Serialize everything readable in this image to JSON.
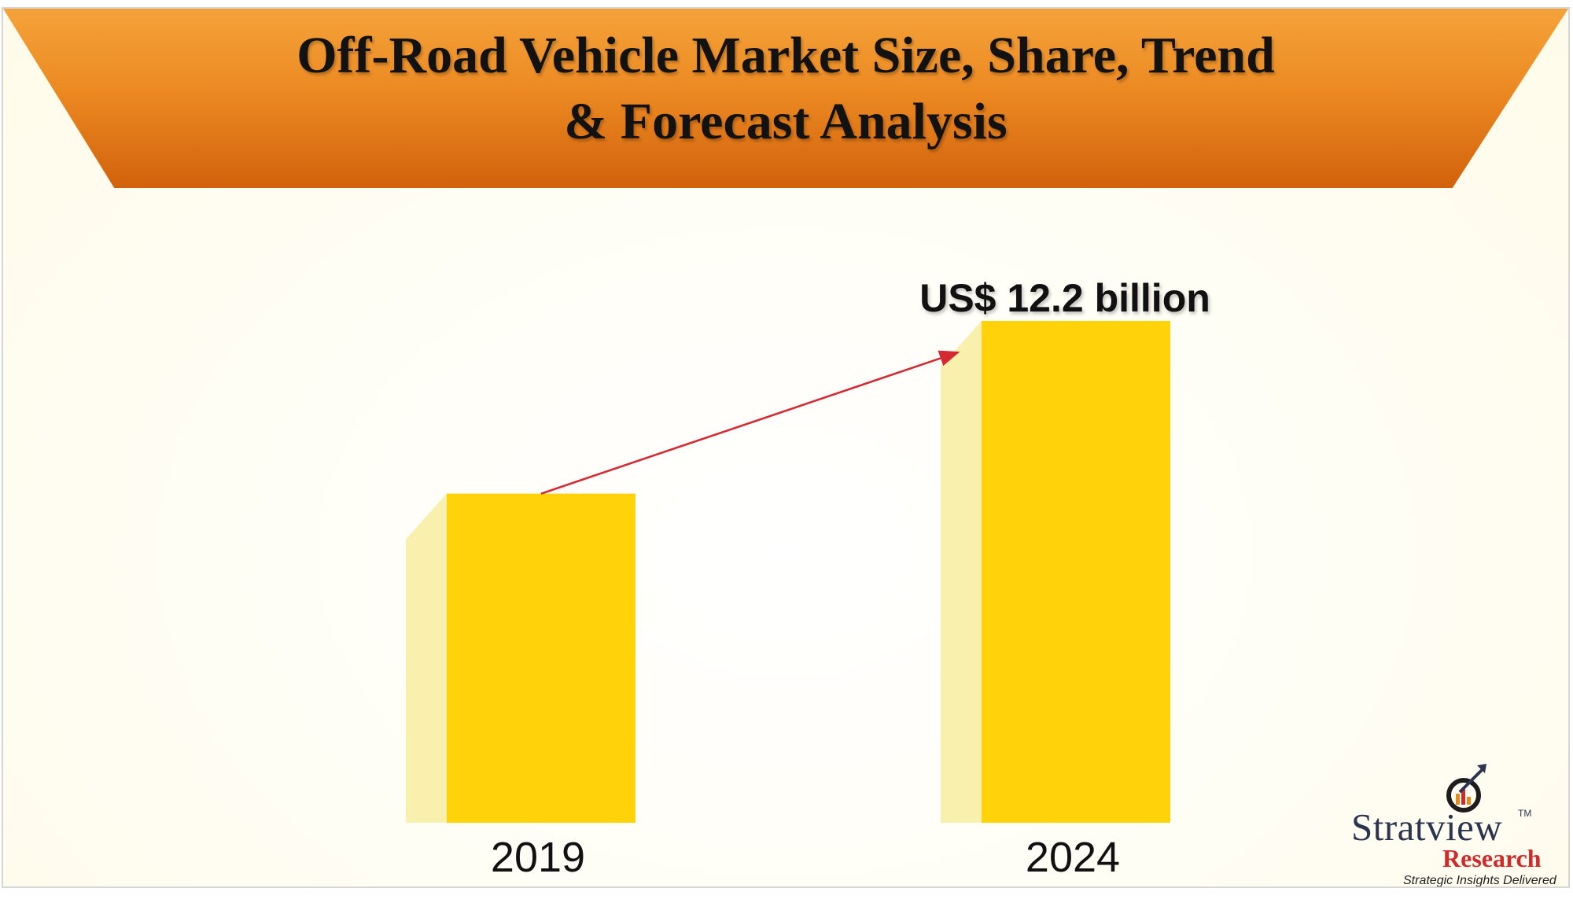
{
  "title": "Off-Road Vehicle Market Size, Share, Trend\n& Forecast Analysis",
  "colors": {
    "banner_top": "#f5a23a",
    "banner_bottom": "#d2620c",
    "bar_front": "#ffd20a",
    "bar_side": "#faf0ad",
    "arrow": "#d62a32"
  },
  "chart_data": {
    "type": "bar",
    "categories": [
      "2019",
      "2024"
    ],
    "data_labels": [
      "",
      "US$ 12.2 billion"
    ],
    "values": [
      8.0,
      12.2
    ],
    "unit": "US$ billion",
    "xlabel": "",
    "ylabel": "",
    "grid": false,
    "trend_arrow": true
  },
  "logo": {
    "word": "Stratview",
    "tm": "TM",
    "sub": "Research",
    "tagline": "Strategic Insights Delivered",
    "icon": "magnifier-growth-icon"
  }
}
